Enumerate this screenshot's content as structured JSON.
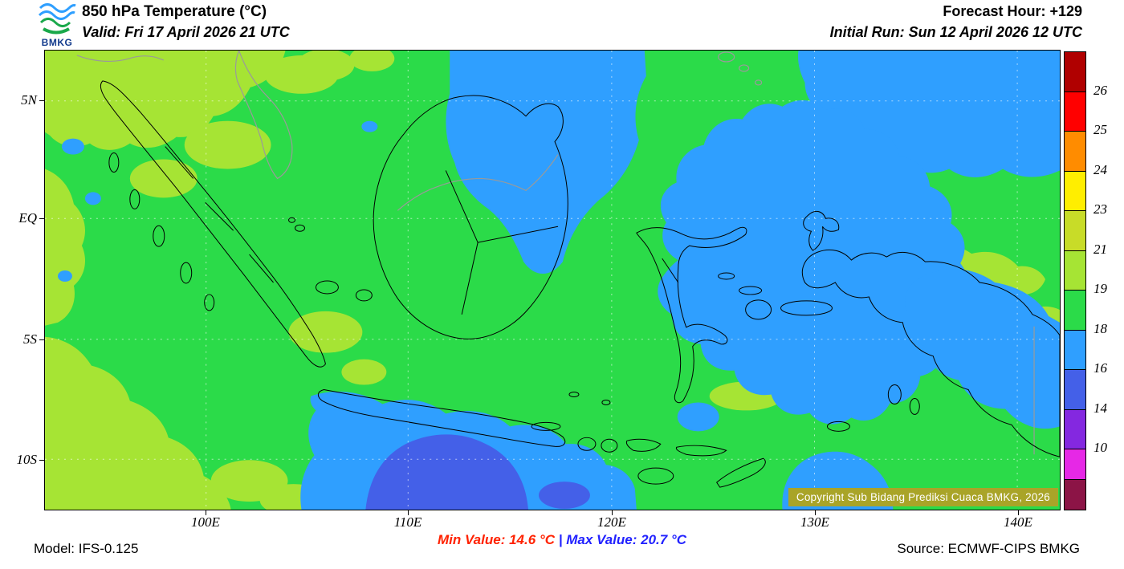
{
  "header": {
    "logo_text": "BMKG",
    "title": "850 hPa Temperature (°C)",
    "valid": "Valid: Fri 17 April 2026 21 UTC",
    "forecast_hour": "Forecast Hour: +129",
    "initial_run": "Initial Run: Sun 12 April 2026 12 UTC"
  },
  "axes": {
    "lat_labels": [
      "5N",
      "EQ",
      "5S",
      "10S"
    ],
    "lon_labels": [
      "100E",
      "110E",
      "120E",
      "130E",
      "140E"
    ]
  },
  "colorbar": {
    "segments": [
      {
        "color": "#B00000",
        "label": "26"
      },
      {
        "color": "#FF0000",
        "label": "25"
      },
      {
        "color": "#FF8C00",
        "label": "24"
      },
      {
        "color": "#FFEE00",
        "label": "23"
      },
      {
        "color": "#C8DC28",
        "label": "21"
      },
      {
        "color": "#A6E434",
        "label": "19"
      },
      {
        "color": "#2BDB49",
        "label": "18"
      },
      {
        "color": "#2F9FFF",
        "label": "16"
      },
      {
        "color": "#4460E8",
        "label": "14"
      },
      {
        "color": "#8428E0",
        "label": "10"
      },
      {
        "color": "#E628E6",
        "label": ""
      },
      {
        "color": "#8C1446",
        "label": ""
      }
    ]
  },
  "map": {
    "copyright": "Copyright Sub Bidang Prediksi Cuaca BMKG, 2026",
    "palette": {
      "green": "#2BDB49",
      "light_green": "#A6E434",
      "light_blue": "#2F9FFF",
      "royal_blue": "#4460E8",
      "purple": "#8428E0"
    }
  },
  "footer": {
    "model": "Model: IFS-0.125",
    "min_label": "Min Value: 14.6 °C",
    "separator": "|",
    "max_label": "Max Value: 20.7 °C",
    "source": "Source: ECMWF-CIPS BMKG",
    "min_color": "#FF2200",
    "max_color": "#2222FF",
    "separator_color": "#2222FF"
  }
}
